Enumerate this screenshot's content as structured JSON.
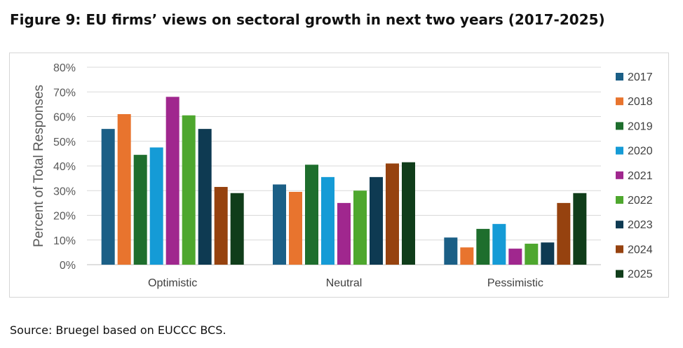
{
  "figure_title": "Figure 9: EU firms’ views on sectoral growth in next two years (2017-2025)",
  "source": "Source: Bruegel based on EUCCC BCS.",
  "chart_data": {
    "type": "bar",
    "title": "",
    "xlabel": "",
    "ylabel": "Percent of Total Responses",
    "ylim": [
      0,
      80
    ],
    "yticks": [
      "0%",
      "10%",
      "20%",
      "30%",
      "40%",
      "50%",
      "60%",
      "70%",
      "80%"
    ],
    "grid": true,
    "legend_position": "right",
    "categories": [
      "Optimistic",
      "Neutral",
      "Pessimistic"
    ],
    "series": [
      {
        "name": "2017",
        "color": "#1b5f86",
        "values": [
          55,
          32.5,
          11
        ]
      },
      {
        "name": "2018",
        "color": "#e8742e",
        "values": [
          61,
          29.5,
          7
        ]
      },
      {
        "name": "2019",
        "color": "#1e6e2d",
        "values": [
          44.5,
          40.5,
          14.5
        ]
      },
      {
        "name": "2020",
        "color": "#159bd6",
        "values": [
          47.5,
          35.5,
          16.5
        ]
      },
      {
        "name": "2021",
        "color": "#a0278e",
        "values": [
          68,
          25,
          6.5
        ]
      },
      {
        "name": "2022",
        "color": "#4ea72e",
        "values": [
          60.5,
          30,
          8.5
        ]
      },
      {
        "name": "2023",
        "color": "#0e3a52",
        "values": [
          55,
          35.5,
          9
        ]
      },
      {
        "name": "2024",
        "color": "#96420f",
        "values": [
          31.5,
          41,
          25
        ]
      },
      {
        "name": "2025",
        "color": "#103d1a",
        "values": [
          29,
          41.5,
          29
        ]
      }
    ]
  }
}
